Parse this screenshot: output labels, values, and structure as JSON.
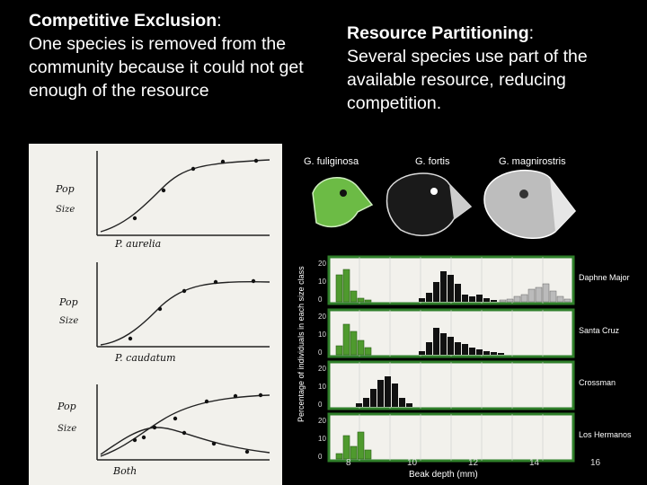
{
  "left": {
    "title": "Competitive Exclusion",
    "colon": ":",
    "body": "One species is removed from the community because it could not get enough of the resource"
  },
  "right": {
    "title": "Resource Partitioning",
    "colon": ":",
    "body": "Several species use part of the available resource, reducing competition."
  },
  "graph_labels": {
    "y_label_line1": "Pop",
    "y_label_line2": "Size",
    "panel1_caption": "P. aurelia",
    "panel2_caption": "P. caudatum",
    "panel3_caption": "Both"
  },
  "finch_labels": [
    "G. fuliginosa",
    "G. fortis",
    "G. magnirostris"
  ],
  "hist_right_labels": [
    "Daphne Major",
    "Santa Cruz",
    "Crossman",
    "Los Hermanos"
  ],
  "hist_ylabel": "Percentage of individuals in each size class",
  "hist_xlabel": "Beak depth (mm)",
  "hist_xticks": [
    "8",
    "10",
    "12",
    "14",
    "16"
  ],
  "colors": {
    "green": "#4f9a2e",
    "frame_green": "#2f7f2a",
    "paper": "#f2f1ec"
  }
}
